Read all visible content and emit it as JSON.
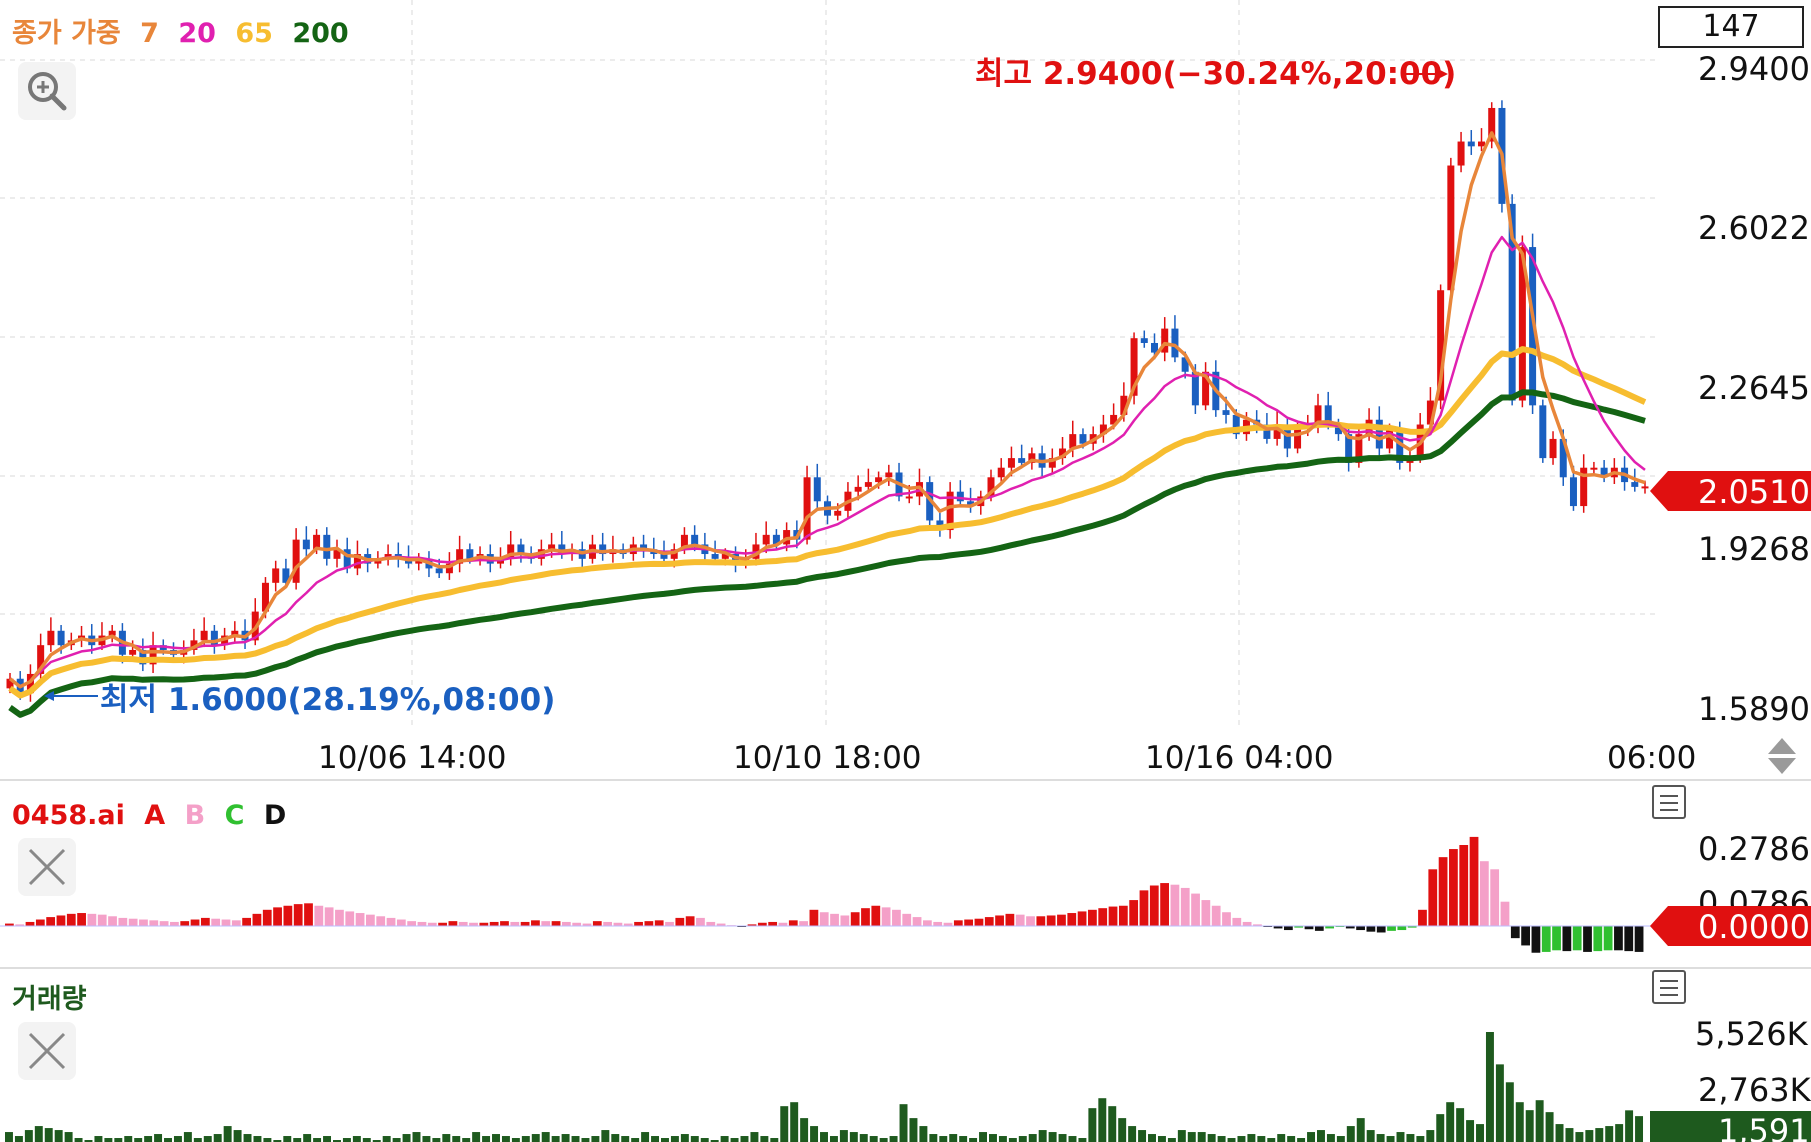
{
  "legend": {
    "title": "종가 가중",
    "periods": [
      {
        "label": "7",
        "color": "#e8863a"
      },
      {
        "label": "20",
        "color": "#e020b0"
      },
      {
        "label": "65",
        "color": "#f7bd30"
      },
      {
        "label": "200",
        "color": "#146414"
      }
    ]
  },
  "top_box": "147",
  "annotations": {
    "high": "최고 2.9400(−30.24%,20:00)",
    "low": "최저 1.6000(28.19%,08:00)"
  },
  "current_price": "2.0510",
  "time_labels": [
    "10/06 14:00",
    "10/10 18:00",
    "10/16 04:00",
    "06:00"
  ],
  "indicator": {
    "name": "0458.ai",
    "series": [
      {
        "label": "A",
        "color": "#e01010"
      },
      {
        "label": "B",
        "color": "#f4a0c8"
      },
      {
        "label": "C",
        "color": "#30c030"
      },
      {
        "label": "D",
        "color": "#111111"
      }
    ],
    "current_value": "0.0000"
  },
  "volume": {
    "title": "거래량",
    "current_value": "1,591"
  },
  "chart_data": [
    {
      "type": "candlestick",
      "y_ticks": [
        "2.9400",
        "2.6022",
        "2.2645",
        "1.9268",
        "1.5890"
      ],
      "ylim": [
        1.589,
        2.94
      ],
      "x_ticks": [
        "10/06 14:00",
        "10/10 18:00",
        "10/16 04:00",
        "06:00"
      ],
      "moving_averages": [
        "7",
        "20",
        "65",
        "200"
      ],
      "high": 2.94,
      "low": 1.6,
      "last": 2.051,
      "closes": [
        1.65,
        1.62,
        1.66,
        1.72,
        1.75,
        1.72,
        1.73,
        1.74,
        1.72,
        1.74,
        1.75,
        1.7,
        1.71,
        1.68,
        1.72,
        1.71,
        1.7,
        1.71,
        1.73,
        1.75,
        1.72,
        1.74,
        1.75,
        1.73,
        1.79,
        1.85,
        1.88,
        1.85,
        1.94,
        1.92,
        1.95,
        1.9,
        1.92,
        1.88,
        1.91,
        1.89,
        1.9,
        1.91,
        1.9,
        1.89,
        1.9,
        1.88,
        1.87,
        1.89,
        1.92,
        1.9,
        1.91,
        1.89,
        1.9,
        1.93,
        1.91,
        1.9,
        1.92,
        1.93,
        1.91,
        1.92,
        1.9,
        1.93,
        1.91,
        1.92,
        1.91,
        1.93,
        1.92,
        1.91,
        1.9,
        1.92,
        1.95,
        1.93,
        1.91,
        1.9,
        1.91,
        1.89,
        1.9,
        1.93,
        1.95,
        1.93,
        1.96,
        1.94,
        2.07,
        2.02,
        1.99,
        2.0,
        2.04,
        2.05,
        2.06,
        2.07,
        2.08,
        2.03,
        2.03,
        2.06,
        1.98,
        1.96,
        2.04,
        2.02,
        2.01,
        2.03,
        2.07,
        2.09,
        2.11,
        2.1,
        2.12,
        2.09,
        2.11,
        2.13,
        2.16,
        2.14,
        2.16,
        2.18,
        2.2,
        2.24,
        2.36,
        2.35,
        2.33,
        2.38,
        2.32,
        2.29,
        2.22,
        2.29,
        2.21,
        2.2,
        2.16,
        2.19,
        2.18,
        2.15,
        2.18,
        2.13,
        2.17,
        2.18,
        2.22,
        2.18,
        2.16,
        2.1,
        2.16,
        2.19,
        2.13,
        2.17,
        2.1,
        2.11,
        2.18,
        2.23,
        2.46,
        2.72,
        2.77,
        2.76,
        2.77,
        2.84,
        2.64,
        2.23,
        2.55,
        2.22,
        2.11,
        2.15,
        2.07,
        2.01,
        2.09,
        2.09,
        2.07,
        2.09,
        2.06,
        2.05,
        2.051
      ]
    },
    {
      "type": "bar",
      "name": "0458.ai",
      "y_ticks": [
        "0.2786",
        "0.0786"
      ],
      "ylim": [
        -0.07,
        0.2786
      ],
      "values": [
        0.006,
        0.004,
        0.01,
        0.016,
        0.022,
        0.026,
        0.03,
        0.032,
        0.03,
        0.028,
        0.024,
        0.02,
        0.018,
        0.016,
        0.014,
        0.012,
        0.01,
        0.012,
        0.016,
        0.02,
        0.018,
        0.016,
        0.014,
        0.02,
        0.03,
        0.04,
        0.046,
        0.05,
        0.054,
        0.056,
        0.05,
        0.046,
        0.04,
        0.036,
        0.032,
        0.028,
        0.024,
        0.02,
        0.016,
        0.012,
        0.01,
        0.008,
        0.008,
        0.012,
        0.01,
        0.008,
        0.008,
        0.01,
        0.012,
        0.01,
        0.01,
        0.014,
        0.012,
        0.012,
        0.01,
        0.008,
        0.006,
        0.012,
        0.01,
        0.008,
        0.006,
        0.01,
        0.012,
        0.014,
        0.01,
        0.02,
        0.024,
        0.02,
        0.01,
        0.006,
        0.002,
        -0.002,
        0.004,
        0.008,
        0.01,
        0.008,
        0.014,
        0.012,
        0.04,
        0.034,
        0.03,
        0.026,
        0.034,
        0.044,
        0.05,
        0.046,
        0.04,
        0.03,
        0.022,
        0.014,
        0.01,
        0.008,
        0.014,
        0.016,
        0.018,
        0.022,
        0.026,
        0.03,
        0.028,
        0.024,
        0.024,
        0.026,
        0.028,
        0.032,
        0.036,
        0.04,
        0.044,
        0.048,
        0.05,
        0.064,
        0.088,
        0.1,
        0.106,
        0.102,
        0.094,
        0.08,
        0.064,
        0.05,
        0.034,
        0.02,
        0.01,
        0.004,
        -0.002,
        -0.006,
        -0.01,
        -0.004,
        -0.008,
        -0.012,
        -0.006,
        -0.002,
        -0.006,
        -0.01,
        -0.014,
        -0.016,
        -0.012,
        -0.01,
        -0.004,
        0.04,
        0.14,
        0.17,
        0.19,
        0.2,
        0.22,
        0.16,
        0.14,
        0.06,
        -0.03,
        -0.048,
        -0.066,
        -0.064,
        -0.06,
        -0.062,
        -0.06,
        -0.064,
        -0.062,
        -0.06,
        -0.06,
        -0.062,
        -0.064
      ],
      "colors_note": "A rising, B falling, C rising negative, D falling negative"
    },
    {
      "type": "bar",
      "name": "거래량",
      "y_ticks": [
        "5,526K",
        "2,763K"
      ],
      "ylim": [
        0,
        5526
      ],
      "values": [
        500,
        300,
        600,
        800,
        700,
        600,
        500,
        200,
        100,
        300,
        200,
        200,
        300,
        200,
        300,
        400,
        200,
        300,
        500,
        200,
        300,
        400,
        800,
        600,
        400,
        300,
        200,
        100,
        300,
        200,
        400,
        200,
        300,
        100,
        200,
        300,
        200,
        100,
        300,
        200,
        400,
        500,
        300,
        200,
        400,
        300,
        200,
        500,
        300,
        400,
        300,
        200,
        300,
        400,
        500,
        300,
        400,
        300,
        200,
        300,
        600,
        400,
        300,
        200,
        500,
        300,
        200,
        300,
        400,
        300,
        200,
        100,
        300,
        200,
        300,
        500,
        300,
        200,
        1800,
        2000,
        1200,
        800,
        500,
        300,
        600,
        500,
        400,
        300,
        200,
        300,
        1900,
        1200,
        800,
        400,
        300,
        400,
        300,
        200,
        500,
        400,
        300,
        200,
        300,
        400,
        600,
        500,
        400,
        300,
        200,
        1700,
        2200,
        1800,
        1200,
        800,
        600,
        400,
        300,
        200,
        600,
        500,
        500,
        400,
        300,
        200,
        300,
        400,
        300,
        200,
        400,
        300,
        200,
        500,
        600,
        400,
        300,
        800,
        1200,
        600,
        400,
        300,
        500,
        400,
        300,
        600,
        1400,
        2000,
        1700,
        1100,
        900,
        5526,
        3900,
        3000,
        2000,
        1600,
        2100,
        1500,
        900,
        700,
        500,
        600,
        700,
        800,
        900,
        1591,
        1300
      ]
    }
  ]
}
